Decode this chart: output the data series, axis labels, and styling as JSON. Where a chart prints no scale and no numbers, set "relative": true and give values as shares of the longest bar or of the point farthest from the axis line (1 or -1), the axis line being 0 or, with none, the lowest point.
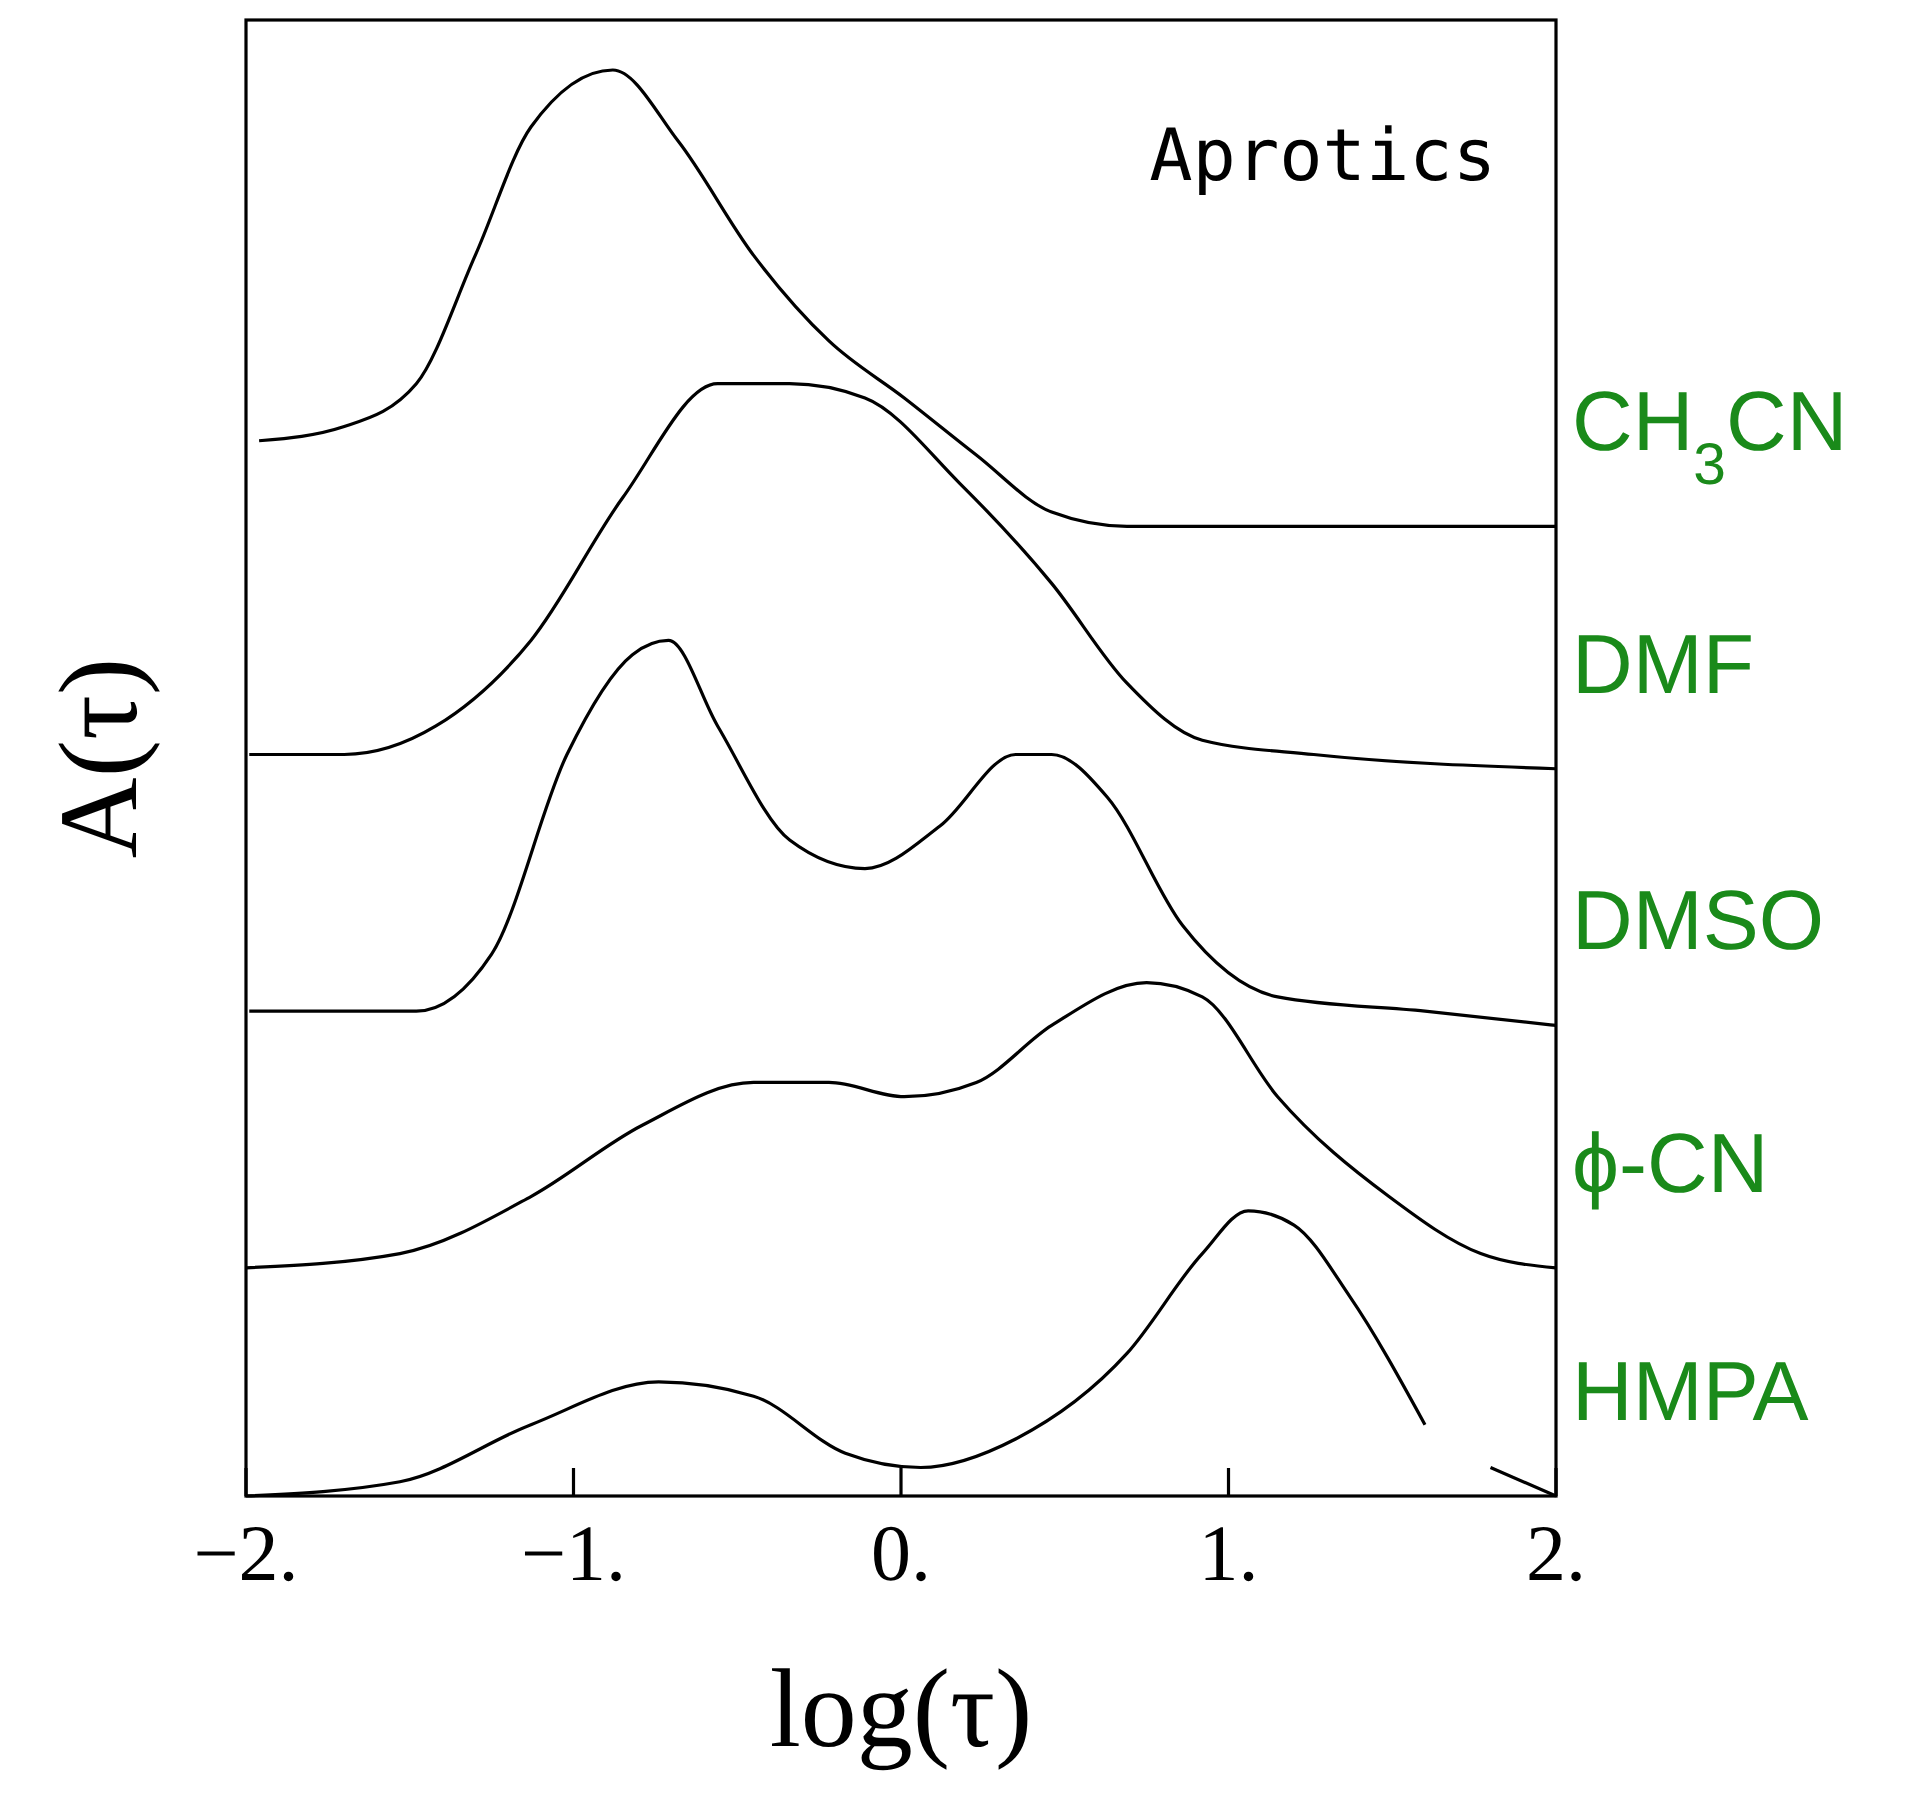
{
  "chart_data": {
    "type": "line",
    "relative": true,
    "xlabel": "log(τ)",
    "ylabel": "A(τ)",
    "annotations": [
      "Aprotics"
    ],
    "tick_labels": "x",
    "xlim": [
      -2,
      2
    ],
    "xticks": [
      {
        "value": -2,
        "label": "−2."
      },
      {
        "value": -1,
        "label": "−1."
      },
      {
        "value": 0,
        "label": "0."
      },
      {
        "value": 1,
        "label": "1."
      },
      {
        "value": 2,
        "label": "2."
      }
    ],
    "series": [
      {
        "name": "CH$_{3}$CN",
        "color": "#000000",
        "x": [
          -1.96,
          -1.7,
          -1.48,
          -1.3,
          -1.13,
          -0.88,
          -0.68,
          -0.45,
          -0.22,
          0.01,
          0.23,
          0.46,
          0.69,
          1.15,
          2
        ],
        "values": [
          0.74,
          0.75,
          0.78,
          0.87,
          0.96,
          1,
          0.95,
          0.87,
          0.81,
          0.77,
          0.73,
          0.69,
          0.68,
          0.68,
          0.68
        ]
      },
      {
        "name": "DMF",
        "color": "#000000",
        "x": [
          -1.99,
          -1.7,
          -1.42,
          -1.13,
          -0.85,
          -0.56,
          -0.34,
          -0.11,
          0.18,
          0.46,
          0.69,
          0.92,
          1.26,
          2
        ],
        "values": [
          0.52,
          0.52,
          0.54,
          0.6,
          0.7,
          0.78,
          0.78,
          0.77,
          0.71,
          0.64,
          0.57,
          0.53,
          0.52,
          0.51
        ]
      },
      {
        "name": "DMSO",
        "color": "#000000",
        "x": [
          -1.99,
          -1.48,
          -1.25,
          -1.02,
          -0.82,
          -0.71,
          -0.56,
          -0.34,
          -0.11,
          0.12,
          0.35,
          0.46,
          0.63,
          0.86,
          1.15,
          1.6,
          2
        ],
        "values": [
          0.34,
          0.34,
          0.38,
          0.52,
          0.59,
          0.6,
          0.54,
          0.46,
          0.44,
          0.47,
          0.52,
          0.52,
          0.49,
          0.4,
          0.35,
          0.34,
          0.33
        ]
      },
      {
        "name": "ϕ-CN",
        "color": "#000000",
        "x": [
          -2,
          -1.53,
          -1.13,
          -0.79,
          -0.45,
          -0.22,
          0.01,
          0.23,
          0.46,
          0.75,
          0.92,
          1.15,
          1.49,
          1.77,
          2
        ],
        "values": [
          0.16,
          0.17,
          0.21,
          0.26,
          0.29,
          0.29,
          0.28,
          0.29,
          0.33,
          0.36,
          0.35,
          0.28,
          0.21,
          0.17,
          0.16
        ]
      },
      {
        "name": "HMPA",
        "color": "#000000",
        "x": [
          -2,
          -1.53,
          -1.13,
          -0.74,
          -0.45,
          -0.17,
          0.06,
          0.35,
          0.69,
          0.92,
          1.06,
          1.2,
          1.37,
          1.6,
          1.7,
          1.8,
          2
        ],
        "values": [
          0,
          0.01,
          0.05,
          0.08,
          0.07,
          0.03,
          0.02,
          0.04,
          0.1,
          0.17,
          0.2,
          0.19,
          0.14,
          0.05,
          null,
          0.02,
          0
        ]
      }
    ]
  }
}
